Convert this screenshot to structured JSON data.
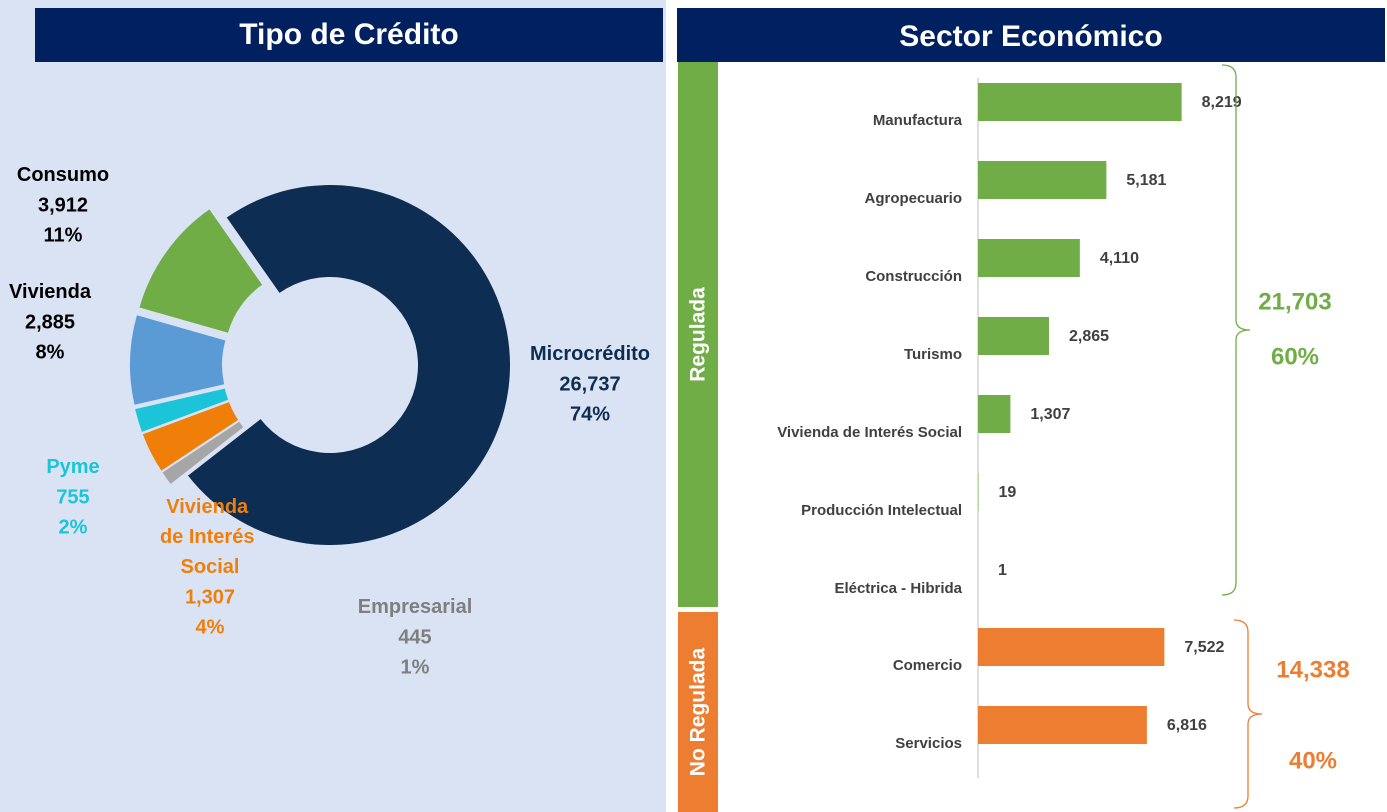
{
  "chart_data": [
    {
      "type": "pie",
      "title": "Tipo de Crédito",
      "categories": [
        "Microcrédito",
        "Empresarial",
        "Vivienda de Interés Social",
        "Pyme",
        "Vivienda",
        "Consumo"
      ],
      "values": [
        26737,
        445,
        1307,
        755,
        2885,
        3912
      ],
      "value_labels": [
        "26,737",
        "445",
        "1,307",
        "755",
        "2,885",
        "3,912"
      ],
      "percents": [
        74,
        1,
        4,
        2,
        8,
        11
      ],
      "percent_labels": [
        "74%",
        "1%",
        "4%",
        "2%",
        "8%",
        "11%"
      ],
      "colors": [
        "#0d2d52",
        "#a6a6a6",
        "#f07f09",
        "#1bc4d8",
        "#5b9bd5",
        "#70ad47"
      ],
      "label_colors": [
        "#0d2d52",
        "#7f7f7f",
        "#f07f09",
        "#1bc4d8",
        "#000000",
        "#000000"
      ]
    },
    {
      "type": "bar",
      "title": "Sector Económico",
      "orientation": "horizontal",
      "xlim": [
        0,
        9000
      ],
      "groups": [
        {
          "name": "Regulada",
          "color": "#70ad47",
          "categories": [
            "Manufactura",
            "Agropecuario",
            "Construcción",
            "Turismo",
            "Vivienda de Interés Social",
            "Producción Intelectual",
            "Eléctrica - Hibrida"
          ],
          "values": [
            8219,
            5181,
            4110,
            2865,
            1307,
            19,
            1
          ],
          "value_labels": [
            "8,219",
            "5,181",
            "4,110",
            "2,865",
            "1,307",
            "19",
            "1"
          ],
          "total": 21703,
          "total_label": "21,703",
          "share": 60,
          "share_label": "60%"
        },
        {
          "name": "No Regulada",
          "color": "#ed7d31",
          "categories": [
            "Comercio",
            "Servicios"
          ],
          "values": [
            7522,
            6816
          ],
          "value_labels": [
            "7,522",
            "6,816"
          ],
          "total": 14338,
          "total_label": "14,338",
          "share": 40,
          "share_label": "40%"
        }
      ]
    }
  ]
}
